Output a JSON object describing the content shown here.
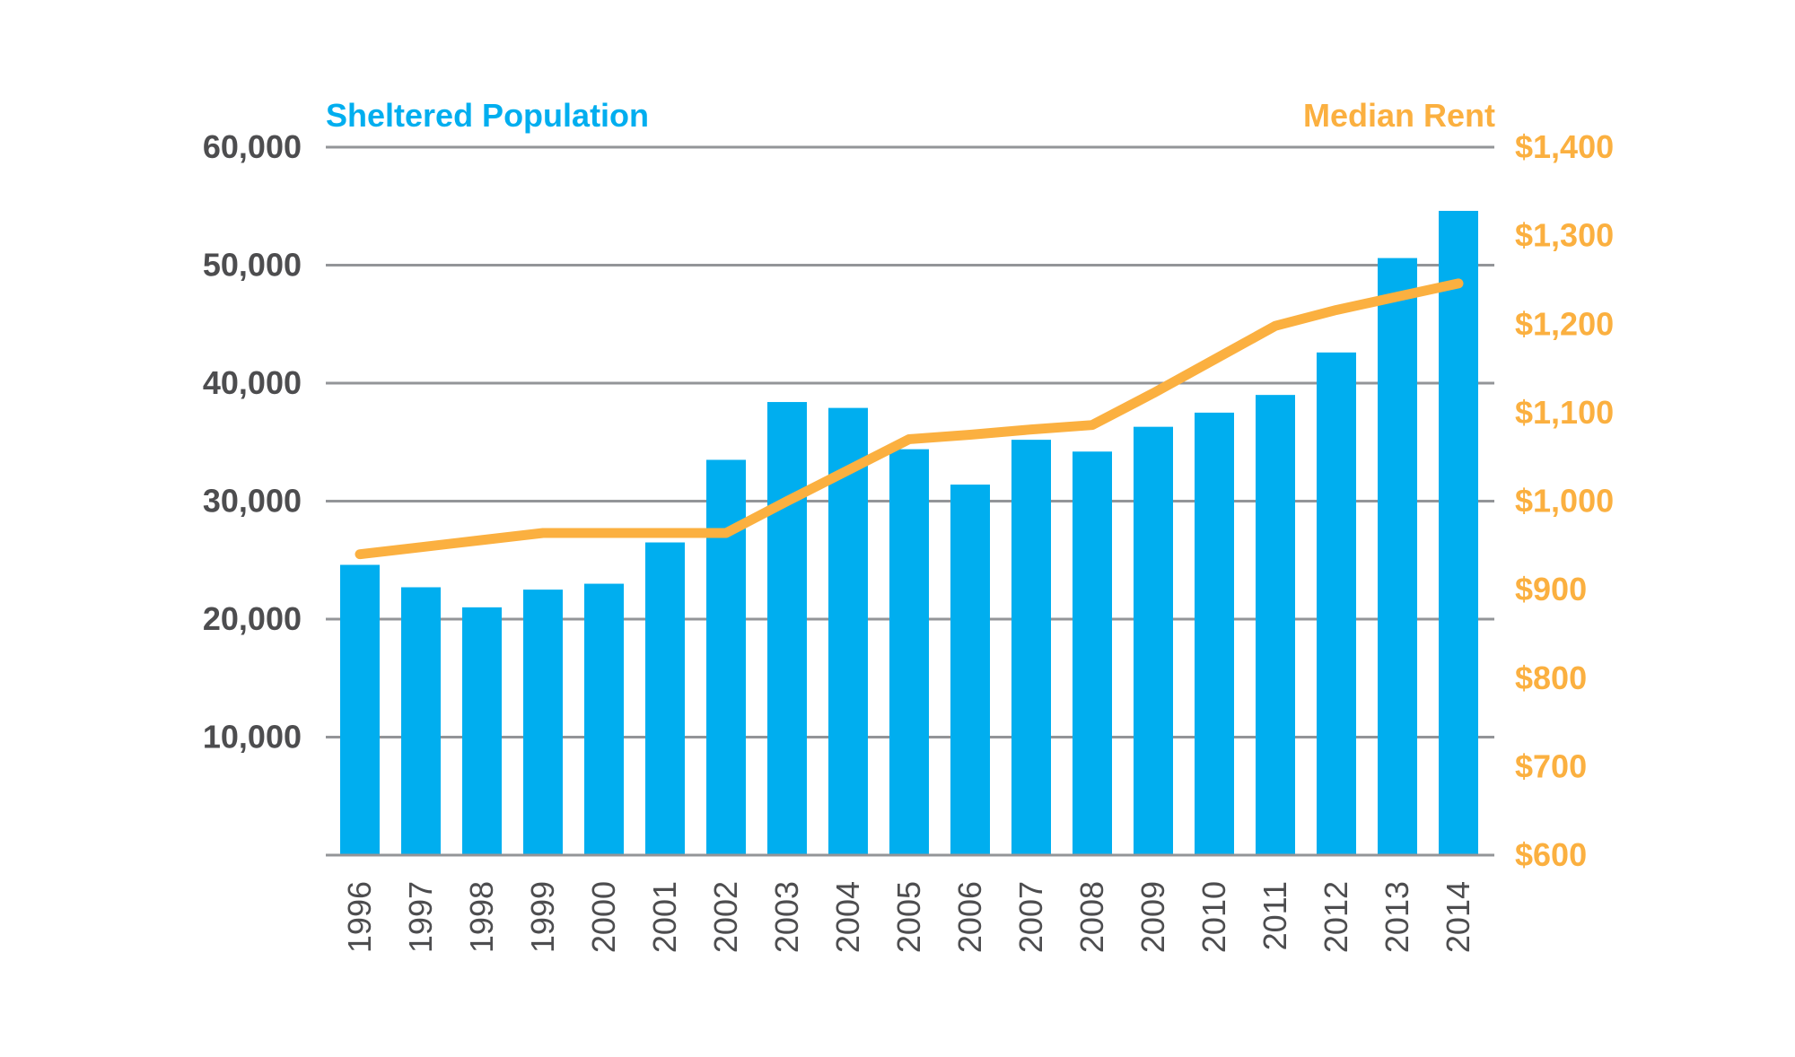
{
  "chart_data": {
    "type": "bar",
    "categories": [
      "1996",
      "1997",
      "1998",
      "1999",
      "2000",
      "2001",
      "2002",
      "2003",
      "2004",
      "2005",
      "2006",
      "2007",
      "2008",
      "2009",
      "2010",
      "2011",
      "2012",
      "2013",
      "2014"
    ],
    "series": [
      {
        "name": "Sheltered Population",
        "type": "bar",
        "axis": "left",
        "color": "#00aeef",
        "values": [
          24600,
          22700,
          21000,
          22500,
          23000,
          26500,
          33500,
          38400,
          37900,
          34400,
          31400,
          35200,
          34200,
          36300,
          37500,
          39000,
          42600,
          50600,
          54600
        ]
      },
      {
        "name": "Median Rent",
        "type": "line",
        "axis": "right",
        "color": "#fbb040",
        "values": [
          940,
          948,
          956,
          964,
          964,
          964,
          964,
          1000,
          1035,
          1070,
          1075,
          1081,
          1086,
          1122,
          1160,
          1198,
          1216,
          1231,
          1246
        ]
      }
    ],
    "left_axis": {
      "title": "Sheltered Population",
      "ylim": [
        0,
        60000
      ],
      "ticks": [
        {
          "value": 10000,
          "label": "10,000"
        },
        {
          "value": 20000,
          "label": "20,000"
        },
        {
          "value": 30000,
          "label": "30,000"
        },
        {
          "value": 40000,
          "label": "40,000"
        },
        {
          "value": 50000,
          "label": "50,000"
        },
        {
          "value": 60000,
          "label": "60,000"
        }
      ]
    },
    "right_axis": {
      "title": "Median Rent",
      "ylim": [
        600,
        1400
      ],
      "ticks": [
        {
          "value": 600,
          "label": "$600"
        },
        {
          "value": 700,
          "label": "$700"
        },
        {
          "value": 800,
          "label": "$800"
        },
        {
          "value": 900,
          "label": "$900"
        },
        {
          "value": 1000,
          "label": "$1,000"
        },
        {
          "value": 1100,
          "label": "$1,100"
        },
        {
          "value": 1200,
          "label": "$1,200"
        },
        {
          "value": 1300,
          "label": "$1,300"
        },
        {
          "value": 1400,
          "label": "$1,400"
        }
      ]
    },
    "x_tick_orientation": "vertical",
    "grid": true,
    "gridline_color": "#939598",
    "axis_text_color": "#4d4d4f"
  }
}
